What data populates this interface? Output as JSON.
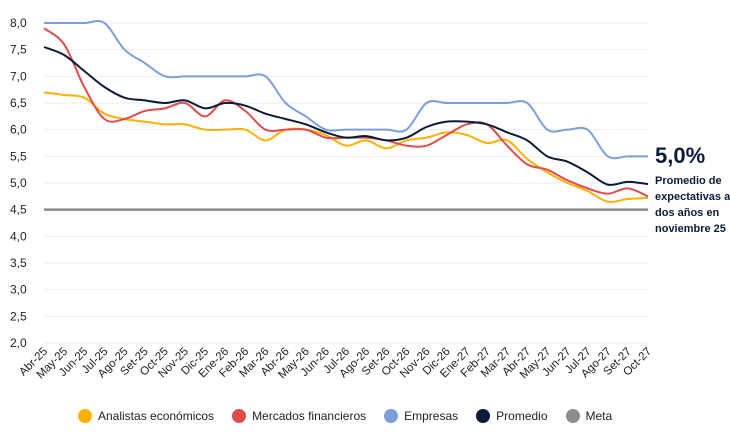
{
  "chart_data": {
    "type": "line",
    "title": "",
    "xlabel": "",
    "ylabel": "",
    "ylim": [
      2.0,
      8.0
    ],
    "yticks": [
      "2,0",
      "2,5",
      "3,0",
      "3,5",
      "4,0",
      "4,5",
      "5,0",
      "5,5",
      "6,0",
      "6,5",
      "7,0",
      "7,5",
      "8,0"
    ],
    "grid": true,
    "legend_position": "bottom",
    "categories": [
      "Abr-25",
      "May-25",
      "Jun-25",
      "Jul-25",
      "Ago-25",
      "Set-25",
      "Oct-25",
      "Nov-25",
      "Dic-25",
      "Ene-26",
      "Feb-26",
      "Mar-26",
      "Abr-26",
      "May-26",
      "Jun-26",
      "Jul-26",
      "Ago-26",
      "Set-26",
      "Oct-26",
      "Nov-26",
      "Dic-26",
      "Ene-27",
      "Feb-27",
      "Mar-27",
      "Abr-27",
      "May-27",
      "Jun-27",
      "Jul-27",
      "Ago-27",
      "Set-27",
      "Oct-27"
    ],
    "series": [
      {
        "name": "Analistas económicos",
        "color": "#FFB000",
        "values": [
          6.7,
          6.65,
          6.6,
          6.3,
          6.2,
          6.15,
          6.1,
          6.1,
          6.0,
          6.0,
          6.0,
          5.8,
          6.0,
          6.0,
          5.9,
          5.7,
          5.8,
          5.65,
          5.8,
          5.85,
          5.95,
          5.9,
          5.75,
          5.8,
          5.45,
          5.2,
          5.0,
          4.85,
          4.65,
          4.7,
          4.72
        ]
      },
      {
        "name": "Mercados financieros",
        "color": "#E04B4B",
        "values": [
          7.9,
          7.6,
          6.8,
          6.2,
          6.2,
          6.35,
          6.4,
          6.5,
          6.25,
          6.55,
          6.35,
          6.0,
          6.0,
          6.0,
          5.85,
          5.85,
          5.85,
          5.8,
          5.7,
          5.7,
          5.9,
          6.1,
          6.1,
          5.7,
          5.35,
          5.25,
          5.05,
          4.9,
          4.8,
          4.9,
          4.75
        ]
      },
      {
        "name": "Empresas",
        "color": "#7C9FD9",
        "values": [
          8.0,
          8.0,
          8.0,
          8.0,
          7.5,
          7.25,
          7.0,
          7.0,
          7.0,
          7.0,
          7.0,
          7.0,
          6.5,
          6.25,
          6.0,
          6.0,
          6.0,
          6.0,
          6.0,
          6.5,
          6.5,
          6.5,
          6.5,
          6.5,
          6.5,
          6.0,
          6.0,
          6.0,
          5.5,
          5.5,
          5.5
        ]
      },
      {
        "name": "Promedio",
        "color": "#0A1A3A",
        "values": [
          7.55,
          7.4,
          7.1,
          6.8,
          6.6,
          6.55,
          6.5,
          6.55,
          6.4,
          6.5,
          6.45,
          6.3,
          6.2,
          6.1,
          5.95,
          5.85,
          5.88,
          5.8,
          5.85,
          6.05,
          6.15,
          6.15,
          6.1,
          5.95,
          5.8,
          5.5,
          5.4,
          5.2,
          4.97,
          5.02,
          4.98
        ]
      },
      {
        "name": "Meta",
        "color": "#8C8C8C",
        "values": [
          4.5,
          4.5,
          4.5,
          4.5,
          4.5,
          4.5,
          4.5,
          4.5,
          4.5,
          4.5,
          4.5,
          4.5,
          4.5,
          4.5,
          4.5,
          4.5,
          4.5,
          4.5,
          4.5,
          4.5,
          4.5,
          4.5,
          4.5,
          4.5,
          4.5,
          4.5,
          4.5,
          4.5,
          4.5,
          4.5,
          4.5
        ]
      }
    ],
    "annotation": {
      "value": "5,0%",
      "text": "Promedio de expectativas a dos años en noviembre 25"
    }
  }
}
